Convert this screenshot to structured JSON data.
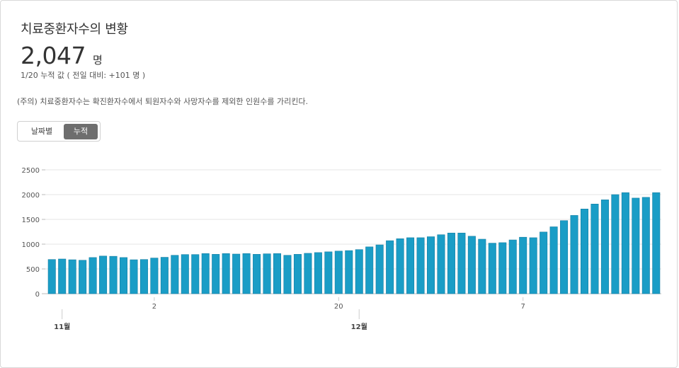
{
  "header": {
    "title": "치료중환자수의 변황",
    "total_value": "2,047",
    "total_unit": "명",
    "subline": "1/20 누적 값 ( 전일 대비: +101 명 )"
  },
  "note": "(주의) 치료중환자수는 확진환자수에서 퇴원자수와 사망자수를 제외한 인원수를 가리킨다.",
  "toggle": {
    "daily_label": "날짜별",
    "cumulative_label": "누적",
    "selected": "cumulative"
  },
  "colors": {
    "bar": "#1a9dc6",
    "bar_stroke": "#177fa3",
    "grid": "#e6e6e6",
    "toggle_active": "#6e6e6e"
  },
  "chart_data": {
    "type": "bar",
    "title": "",
    "xlabel": "",
    "ylabel": "",
    "ylim": [
      0,
      2500
    ],
    "yticks": [
      0,
      500,
      1000,
      1500,
      2000,
      2500
    ],
    "grid": true,
    "x_tick_labels": [
      {
        "index": 10,
        "label": "2"
      },
      {
        "index": 28,
        "label": "20"
      },
      {
        "index": 46,
        "label": "7"
      }
    ],
    "month_labels": [
      {
        "index": 1,
        "label": "11월"
      },
      {
        "index": 30,
        "label": "12월"
      }
    ],
    "values": [
      690,
      700,
      685,
      675,
      730,
      760,
      755,
      730,
      685,
      690,
      720,
      735,
      775,
      790,
      790,
      810,
      795,
      810,
      800,
      810,
      795,
      805,
      810,
      775,
      795,
      815,
      830,
      845,
      860,
      870,
      890,
      945,
      985,
      1070,
      1110,
      1130,
      1130,
      1150,
      1190,
      1225,
      1225,
      1160,
      1100,
      1020,
      1030,
      1085,
      1140,
      1130,
      1245,
      1350,
      1475,
      1580,
      1710,
      1810,
      1895,
      2000,
      2040,
      1930,
      1945,
      2040
    ]
  }
}
